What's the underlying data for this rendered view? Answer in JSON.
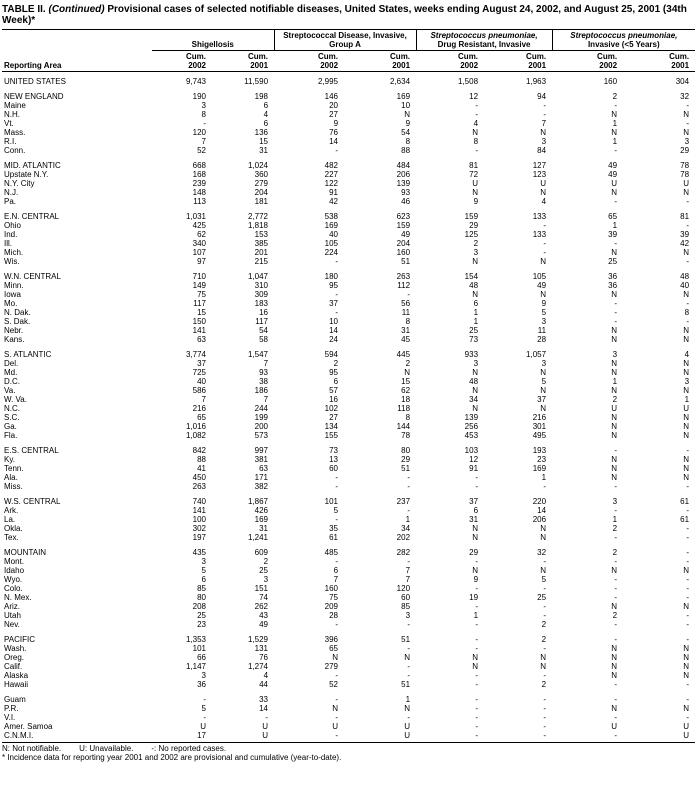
{
  "title": {
    "label": "TABLE II.",
    "continued": "(Continued)",
    "text": "Provisional cases of selected notifiable diseases, United States, weeks ending August 24, 2002, and August 25, 2001 (34th Week)*"
  },
  "header": {
    "reporting_area": "Reporting Area",
    "groups": [
      {
        "text": "Shigellosis"
      },
      {
        "text": "Streptococcal Disease, Invasive, Group A"
      },
      {
        "italic": "Streptococcus pneumoniae,",
        "text": "Drug Resistant, Invasive"
      },
      {
        "italic": "Streptococcus pneumoniae,",
        "text": "Invasive (<5 Years)"
      }
    ],
    "subcolumns": [
      [
        "Cum.",
        "2002"
      ],
      [
        "Cum.",
        "2001"
      ],
      [
        "Cum.",
        "2002"
      ],
      [
        "Cum.",
        "2001"
      ],
      [
        "Cum.",
        "2002"
      ],
      [
        "Cum.",
        "2001"
      ],
      [
        "Cum.",
        "2002"
      ],
      [
        "Cum.",
        "2001"
      ]
    ]
  },
  "table": {
    "sections": [
      {
        "rows": [
          [
            "UNITED STATES",
            "9,743",
            "11,590",
            "2,995",
            "2,634",
            "1,508",
            "1,963",
            "160",
            "304"
          ]
        ]
      },
      {
        "rows": [
          [
            "NEW ENGLAND",
            "190",
            "198",
            "146",
            "169",
            "12",
            "94",
            "2",
            "32"
          ],
          [
            "Maine",
            "3",
            "6",
            "20",
            "10",
            "-",
            "-",
            "-",
            "-"
          ],
          [
            "N.H.",
            "8",
            "4",
            "27",
            "N",
            "-",
            "-",
            "N",
            "N"
          ],
          [
            "Vt.",
            "-",
            "6",
            "9",
            "9",
            "4",
            "7",
            "1",
            "-"
          ],
          [
            "Mass.",
            "120",
            "136",
            "76",
            "54",
            "N",
            "N",
            "N",
            "N"
          ],
          [
            "R.I.",
            "7",
            "15",
            "14",
            "8",
            "8",
            "3",
            "1",
            "3"
          ],
          [
            "Conn.",
            "52",
            "31",
            "-",
            "88",
            "-",
            "84",
            "-",
            "29"
          ]
        ]
      },
      {
        "rows": [
          [
            "MID. ATLANTIC",
            "668",
            "1,024",
            "482",
            "484",
            "81",
            "127",
            "49",
            "78"
          ],
          [
            "Upstate N.Y.",
            "168",
            "360",
            "227",
            "206",
            "72",
            "123",
            "49",
            "78"
          ],
          [
            "N.Y. City",
            "239",
            "279",
            "122",
            "139",
            "U",
            "U",
            "U",
            "U"
          ],
          [
            "N.J.",
            "148",
            "204",
            "91",
            "93",
            "N",
            "N",
            "N",
            "N"
          ],
          [
            "Pa.",
            "113",
            "181",
            "42",
            "46",
            "9",
            "4",
            "-",
            "-"
          ]
        ]
      },
      {
        "rows": [
          [
            "E.N. CENTRAL",
            "1,031",
            "2,772",
            "538",
            "623",
            "159",
            "133",
            "65",
            "81"
          ],
          [
            "Ohio",
            "425",
            "1,818",
            "169",
            "159",
            "29",
            "-",
            "1",
            "-"
          ],
          [
            "Ind.",
            "62",
            "153",
            "40",
            "49",
            "125",
            "133",
            "39",
            "39"
          ],
          [
            "Ill.",
            "340",
            "385",
            "105",
            "204",
            "2",
            "-",
            "-",
            "42"
          ],
          [
            "Mich.",
            "107",
            "201",
            "224",
            "160",
            "3",
            "-",
            "N",
            "N"
          ],
          [
            "Wis.",
            "97",
            "215",
            "-",
            "51",
            "N",
            "N",
            "25",
            "-"
          ]
        ]
      },
      {
        "rows": [
          [
            "W.N. CENTRAL",
            "710",
            "1,047",
            "180",
            "263",
            "154",
            "105",
            "36",
            "48"
          ],
          [
            "Minn.",
            "149",
            "310",
            "95",
            "112",
            "48",
            "49",
            "36",
            "40"
          ],
          [
            "Iowa",
            "75",
            "309",
            "-",
            "-",
            "N",
            "N",
            "N",
            "N"
          ],
          [
            "Mo.",
            "117",
            "183",
            "37",
            "56",
            "6",
            "9",
            "-",
            "-"
          ],
          [
            "N. Dak.",
            "15",
            "16",
            "-",
            "11",
            "1",
            "5",
            "-",
            "8"
          ],
          [
            "S. Dak.",
            "150",
            "117",
            "10",
            "8",
            "1",
            "3",
            "-",
            "-"
          ],
          [
            "Nebr.",
            "141",
            "54",
            "14",
            "31",
            "25",
            "11",
            "N",
            "N"
          ],
          [
            "Kans.",
            "63",
            "58",
            "24",
            "45",
            "73",
            "28",
            "N",
            "N"
          ]
        ]
      },
      {
        "rows": [
          [
            "S. ATLANTIC",
            "3,774",
            "1,547",
            "594",
            "445",
            "933",
            "1,057",
            "3",
            "4"
          ],
          [
            "Del.",
            "37",
            "7",
            "2",
            "2",
            "3",
            "3",
            "N",
            "N"
          ],
          [
            "Md.",
            "725",
            "93",
            "95",
            "N",
            "N",
            "N",
            "N",
            "N"
          ],
          [
            "D.C.",
            "40",
            "38",
            "6",
            "15",
            "48",
            "5",
            "1",
            "3"
          ],
          [
            "Va.",
            "586",
            "186",
            "57",
            "62",
            "N",
            "N",
            "N",
            "N"
          ],
          [
            "W. Va.",
            "7",
            "7",
            "16",
            "18",
            "34",
            "37",
            "2",
            "1"
          ],
          [
            "N.C.",
            "216",
            "244",
            "102",
            "118",
            "N",
            "N",
            "U",
            "U"
          ],
          [
            "S.C.",
            "65",
            "199",
            "27",
            "8",
            "139",
            "216",
            "N",
            "N"
          ],
          [
            "Ga.",
            "1,016",
            "200",
            "134",
            "144",
            "256",
            "301",
            "N",
            "N"
          ],
          [
            "Fla.",
            "1,082",
            "573",
            "155",
            "78",
            "453",
            "495",
            "N",
            "N"
          ]
        ]
      },
      {
        "rows": [
          [
            "E.S. CENTRAL",
            "842",
            "997",
            "73",
            "80",
            "103",
            "193",
            "-",
            "-"
          ],
          [
            "Ky.",
            "88",
            "381",
            "13",
            "29",
            "12",
            "23",
            "N",
            "N"
          ],
          [
            "Tenn.",
            "41",
            "63",
            "60",
            "51",
            "91",
            "169",
            "N",
            "N"
          ],
          [
            "Ala.",
            "450",
            "171",
            "-",
            "-",
            "-",
            "1",
            "N",
            "N"
          ],
          [
            "Miss.",
            "263",
            "382",
            "-",
            "-",
            "-",
            "-",
            "-",
            "-"
          ]
        ]
      },
      {
        "rows": [
          [
            "W.S. CENTRAL",
            "740",
            "1,867",
            "101",
            "237",
            "37",
            "220",
            "3",
            "61"
          ],
          [
            "Ark.",
            "141",
            "426",
            "5",
            "-",
            "6",
            "14",
            "-",
            "-"
          ],
          [
            "La.",
            "100",
            "169",
            "-",
            "1",
            "31",
            "206",
            "1",
            "61"
          ],
          [
            "Okla.",
            "302",
            "31",
            "35",
            "34",
            "N",
            "N",
            "2",
            "-"
          ],
          [
            "Tex.",
            "197",
            "1,241",
            "61",
            "202",
            "N",
            "N",
            "-",
            "-"
          ]
        ]
      },
      {
        "rows": [
          [
            "MOUNTAIN",
            "435",
            "609",
            "485",
            "282",
            "29",
            "32",
            "2",
            "-"
          ],
          [
            "Mont.",
            "3",
            "2",
            "-",
            "-",
            "-",
            "-",
            "-",
            "-"
          ],
          [
            "Idaho",
            "5",
            "25",
            "6",
            "7",
            "N",
            "N",
            "N",
            "N"
          ],
          [
            "Wyo.",
            "6",
            "3",
            "7",
            "7",
            "9",
            "5",
            "-",
            "-"
          ],
          [
            "Colo.",
            "85",
            "151",
            "160",
            "120",
            "-",
            "-",
            "-",
            "-"
          ],
          [
            "N. Mex.",
            "80",
            "74",
            "75",
            "60",
            "19",
            "25",
            "-",
            "-"
          ],
          [
            "Ariz.",
            "208",
            "262",
            "209",
            "85",
            "-",
            "-",
            "N",
            "N"
          ],
          [
            "Utah",
            "25",
            "43",
            "28",
            "3",
            "1",
            "-",
            "2",
            "-"
          ],
          [
            "Nev.",
            "23",
            "49",
            "-",
            "-",
            "-",
            "2",
            "-",
            "-"
          ]
        ]
      },
      {
        "rows": [
          [
            "PACIFIC",
            "1,353",
            "1,529",
            "396",
            "51",
            "-",
            "2",
            "-",
            "-"
          ],
          [
            "Wash.",
            "101",
            "131",
            "65",
            "-",
            "-",
            "-",
            "N",
            "N"
          ],
          [
            "Oreg.",
            "66",
            "76",
            "N",
            "N",
            "N",
            "N",
            "N",
            "N"
          ],
          [
            "Calif.",
            "1,147",
            "1,274",
            "279",
            "-",
            "N",
            "N",
            "N",
            "N"
          ],
          [
            "Alaska",
            "3",
            "4",
            "-",
            "-",
            "-",
            "-",
            "N",
            "N"
          ],
          [
            "Hawaii",
            "36",
            "44",
            "52",
            "51",
            "-",
            "2",
            "-",
            "-"
          ]
        ]
      },
      {
        "rows": [
          [
            "Guam",
            "-",
            "33",
            "-",
            "1",
            "-",
            "-",
            "-",
            "-"
          ],
          [
            "P.R.",
            "5",
            "14",
            "N",
            "N",
            "-",
            "-",
            "N",
            "N"
          ],
          [
            "V.I.",
            "-",
            "-",
            "-",
            "-",
            "-",
            "-",
            "-",
            "-"
          ],
          [
            "Amer. Samoa",
            "U",
            "U",
            "U",
            "U",
            "-",
            "-",
            "U",
            "U"
          ],
          [
            "C.N.M.I.",
            "17",
            "U",
            "-",
            "U",
            "-",
            "-",
            "-",
            "U"
          ]
        ]
      }
    ]
  },
  "footnotes": {
    "legend": [
      "N: Not notifiable.",
      "U: Unavailable.",
      "-: No reported cases."
    ],
    "note": "* Incidence data for reporting year 2001 and 2002 are provisional and cumulative (year-to-date)."
  }
}
